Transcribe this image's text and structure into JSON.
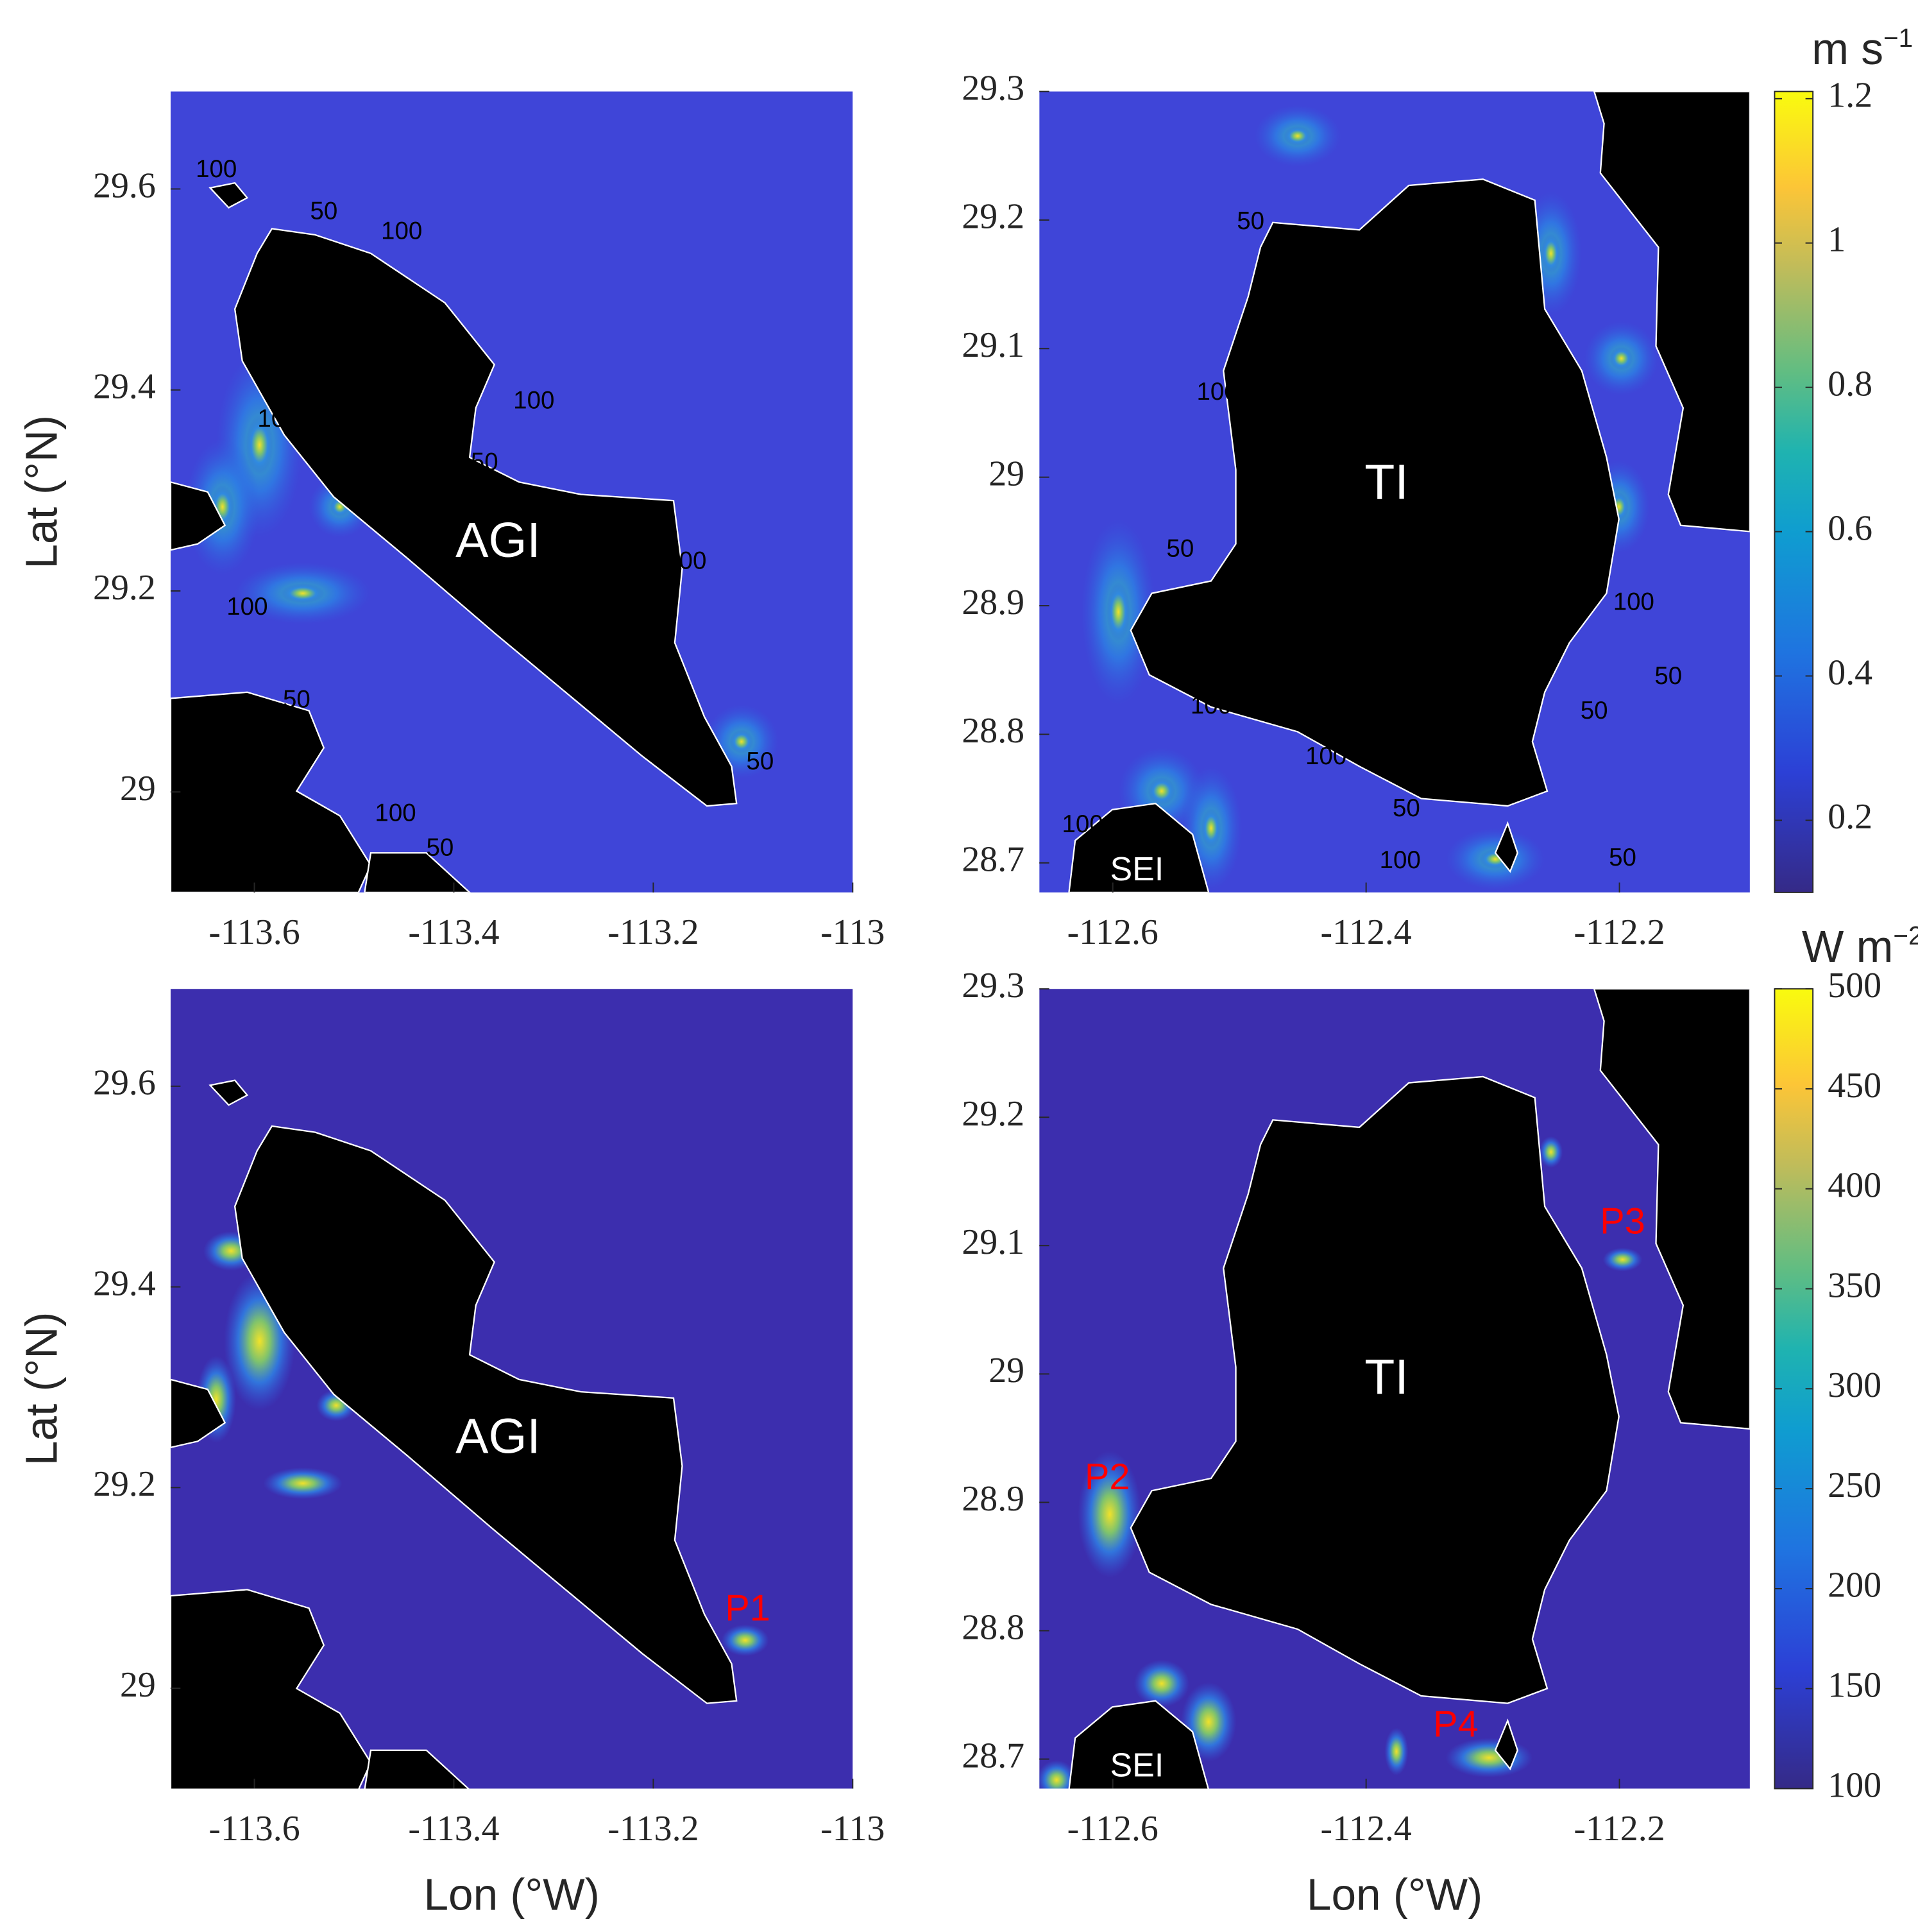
{
  "chart_data": [
    {
      "type": "map",
      "xlim": [
        -113.684,
        -113
      ],
      "ylim": [
        28.9,
        29.697
      ],
      "xticks": [
        -113.6,
        -113.4,
        -113.2,
        -113
      ],
      "yticks": [
        29,
        29.2,
        29.4,
        29.6
      ],
      "ylabel": "Lat (°N)",
      "annotations": [
        "AGI"
      ],
      "contour_labels": [
        100,
        50,
        100,
        100,
        50,
        100,
        100,
        50,
        100,
        50,
        50,
        100
      ]
    },
    {
      "type": "map",
      "xlim": [
        -112.658,
        -112.097
      ],
      "ylim": [
        28.677,
        29.3
      ],
      "xticks": [
        -112.6,
        -112.4,
        -112.2
      ],
      "yticks": [
        28.7,
        28.8,
        28.9,
        29,
        29.1,
        29.2,
        29.3
      ],
      "annotations": [
        "TI",
        "SEI"
      ],
      "contour_labels": [
        50,
        100,
        50,
        100,
        100,
        50,
        100,
        50,
        100,
        50,
        50,
        100
      ],
      "colorbar": {
        "clim": [
          0.1,
          1.21
        ],
        "cticks": [
          0.2,
          0.4,
          0.6,
          0.8,
          1,
          1.2
        ],
        "label": "m s",
        "label_exp": "−1"
      }
    },
    {
      "type": "map",
      "xlim": [
        -113.684,
        -113
      ],
      "ylim": [
        28.9,
        29.697
      ],
      "xticks": [
        -113.6,
        -113.4,
        -113.2,
        -113
      ],
      "yticks": [
        29,
        29.2,
        29.4,
        29.6
      ],
      "xlabel": "Lon (°W)",
      "ylabel": "Lat (°N)",
      "annotations": [
        "AGI",
        "P1"
      ]
    },
    {
      "type": "map",
      "xlim": [
        -112.658,
        -112.097
      ],
      "ylim": [
        28.677,
        29.3
      ],
      "xticks": [
        -112.6,
        -112.4,
        -112.2
      ],
      "yticks": [
        28.7,
        28.8,
        28.9,
        29,
        29.1,
        29.2,
        29.3
      ],
      "xlabel": "Lon (°W)",
      "annotations": [
        "TI",
        "SEI",
        "P2",
        "P3",
        "P4"
      ],
      "colorbar": {
        "clim": [
          100,
          500
        ],
        "cticks": [
          100,
          150,
          200,
          250,
          300,
          350,
          400,
          450,
          500
        ],
        "label": "W m",
        "label_exp": "−2"
      }
    }
  ]
}
